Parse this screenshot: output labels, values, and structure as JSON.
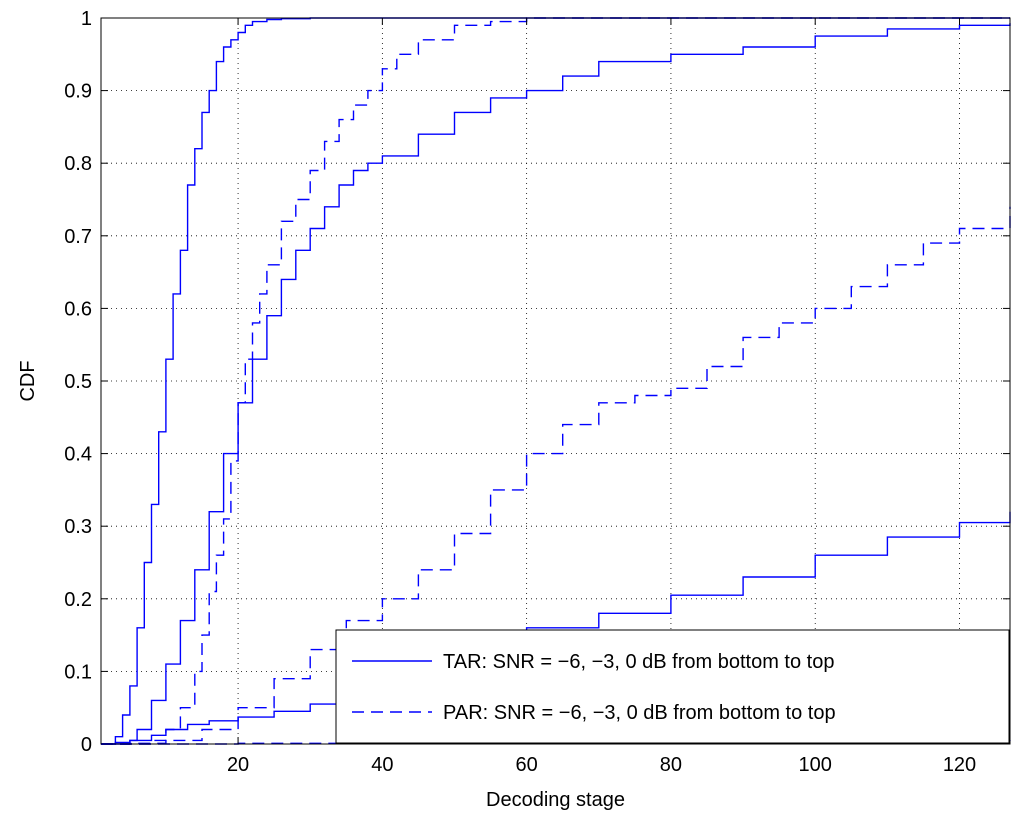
{
  "chart_data": {
    "type": "line",
    "title": "",
    "xlabel": "Decoding stage",
    "ylabel": "CDF",
    "xlim": [
      1,
      127
    ],
    "ylim": [
      0,
      1
    ],
    "xticks": [
      20,
      40,
      60,
      80,
      100,
      120
    ],
    "yticks": [
      0,
      0.1,
      0.2,
      0.3,
      0.4,
      0.5,
      0.6,
      0.7,
      0.8,
      0.9,
      1
    ],
    "ytick_labels": [
      "0",
      "0.1",
      "0.2",
      "0.3",
      "0.4",
      "0.5",
      "0.6",
      "0.7",
      "0.8",
      "0.9",
      "1"
    ],
    "grid": true,
    "grid_style": "dotted",
    "step": true,
    "color": "#0000ff",
    "legend": {
      "position": "bottom-right",
      "entries": [
        {
          "style": "solid",
          "label": "TAR: SNR = −6, −3, 0 dB from bottom to top"
        },
        {
          "style": "dashed",
          "label": "PAR: SNR = −6, −3, 0 dB from bottom to top"
        }
      ]
    },
    "series": [
      {
        "group": "TAR",
        "snr": 0,
        "style": "solid",
        "x": [
          1,
          3,
          4,
          5,
          6,
          7,
          8,
          9,
          10,
          11,
          12,
          13,
          14,
          15,
          16,
          17,
          18,
          19,
          20,
          21,
          22,
          24,
          26,
          30,
          127
        ],
        "y": [
          0,
          0.01,
          0.04,
          0.08,
          0.16,
          0.25,
          0.33,
          0.43,
          0.53,
          0.62,
          0.68,
          0.77,
          0.82,
          0.87,
          0.9,
          0.94,
          0.96,
          0.97,
          0.98,
          0.99,
          0.995,
          0.998,
          0.999,
          1.0,
          1.0
        ]
      },
      {
        "group": "TAR",
        "snr": -3,
        "style": "solid",
        "x": [
          1,
          5,
          6,
          8,
          10,
          12,
          14,
          16,
          18,
          20,
          22,
          24,
          26,
          28,
          30,
          32,
          34,
          36,
          38,
          40,
          45,
          50,
          55,
          60,
          65,
          70,
          80,
          90,
          100,
          110,
          120,
          127
        ],
        "y": [
          0,
          0.005,
          0.02,
          0.06,
          0.11,
          0.17,
          0.24,
          0.32,
          0.4,
          0.47,
          0.53,
          0.59,
          0.64,
          0.68,
          0.71,
          0.74,
          0.77,
          0.79,
          0.8,
          0.81,
          0.84,
          0.87,
          0.89,
          0.9,
          0.92,
          0.94,
          0.95,
          0.96,
          0.975,
          0.985,
          0.99,
          0.993
        ]
      },
      {
        "group": "TAR",
        "snr": -6,
        "style": "solid",
        "x": [
          1,
          3,
          5,
          8,
          10,
          13,
          16,
          20,
          25,
          30,
          40,
          50,
          60,
          70,
          80,
          90,
          100,
          110,
          120,
          127
        ],
        "y": [
          0,
          0.002,
          0.005,
          0.012,
          0.02,
          0.027,
          0.032,
          0.037,
          0.045,
          0.055,
          0.07,
          0.12,
          0.16,
          0.18,
          0.205,
          0.23,
          0.26,
          0.285,
          0.305,
          0.32
        ]
      },
      {
        "group": "PAR",
        "snr": 0,
        "style": "dashed",
        "x": [
          1,
          8,
          10,
          12,
          14,
          15,
          16,
          17,
          18,
          19,
          20,
          21,
          22,
          23,
          24,
          26,
          28,
          30,
          32,
          34,
          36,
          38,
          40,
          42,
          45,
          50,
          55,
          60,
          127
        ],
        "y": [
          0,
          0.005,
          0.02,
          0.05,
          0.1,
          0.15,
          0.21,
          0.26,
          0.31,
          0.39,
          0.47,
          0.53,
          0.58,
          0.62,
          0.66,
          0.72,
          0.75,
          0.79,
          0.83,
          0.86,
          0.88,
          0.9,
          0.93,
          0.95,
          0.97,
          0.99,
          0.995,
          1.0,
          1.0
        ]
      },
      {
        "group": "PAR",
        "snr": -3,
        "style": "dashed",
        "x": [
          1,
          5,
          10,
          15,
          20,
          25,
          30,
          35,
          40,
          45,
          50,
          55,
          60,
          65,
          70,
          75,
          80,
          85,
          90,
          95,
          100,
          105,
          110,
          115,
          120,
          127
        ],
        "y": [
          0,
          0.001,
          0.005,
          0.02,
          0.05,
          0.09,
          0.13,
          0.17,
          0.2,
          0.24,
          0.29,
          0.35,
          0.4,
          0.44,
          0.47,
          0.48,
          0.49,
          0.52,
          0.56,
          0.58,
          0.6,
          0.63,
          0.66,
          0.69,
          0.71,
          0.74
        ]
      },
      {
        "group": "PAR",
        "snr": -6,
        "style": "dashed",
        "x": [
          1,
          20,
          60,
          100,
          127
        ],
        "y": [
          0,
          0.001,
          0.002,
          0.003,
          0.005
        ]
      }
    ]
  }
}
